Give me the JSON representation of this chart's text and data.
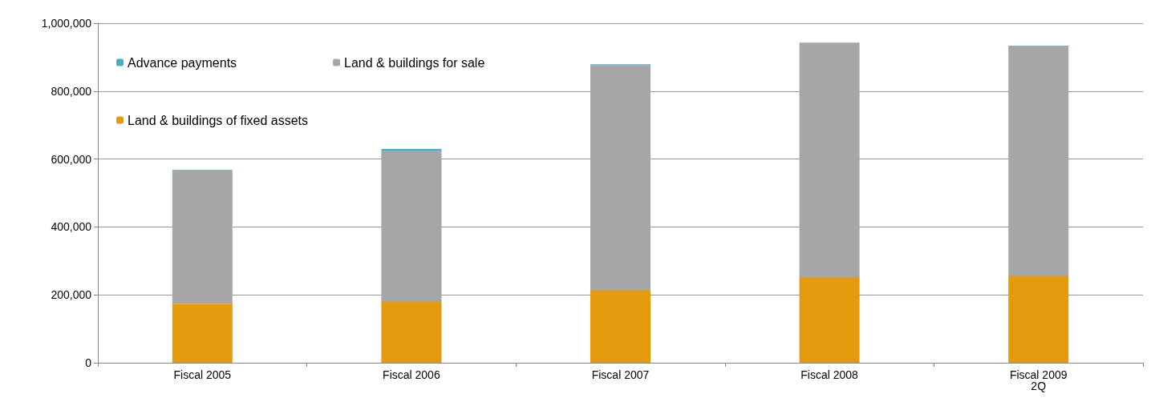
{
  "chart_data": {
    "type": "bar",
    "stacked": true,
    "categories": [
      "Fiscal 2005",
      "Fiscal 2006",
      "Fiscal 2007",
      "Fiscal 2008",
      "Fiscal 2009\n2Q"
    ],
    "series": [
      {
        "name": "Land & buildings of fixed assets",
        "color": "#e39a0c",
        "values": [
          174000,
          179000,
          212000,
          250000,
          255000
        ]
      },
      {
        "name": "Land & buildings for sale",
        "color": "#a6a6a6",
        "values": [
          392000,
          444000,
          665000,
          693000,
          677000
        ]
      },
      {
        "name": "Advance payments",
        "color": "#4bacc6",
        "values": [
          2000,
          7000,
          2000,
          null,
          2000
        ]
      }
    ],
    "ylim": [
      0,
      1000000
    ],
    "yticks": [
      0,
      {
        "value": 200000,
        "label": "200,000"
      },
      {
        "value": 400000,
        "label": "400,000"
      },
      {
        "value": 600000,
        "label": "600,000"
      },
      {
        "value": 800000,
        "label": "800,000"
      },
      {
        "value": 1000000,
        "label": "1,000,000"
      }
    ],
    "grid": "y",
    "legend": "top left"
  }
}
